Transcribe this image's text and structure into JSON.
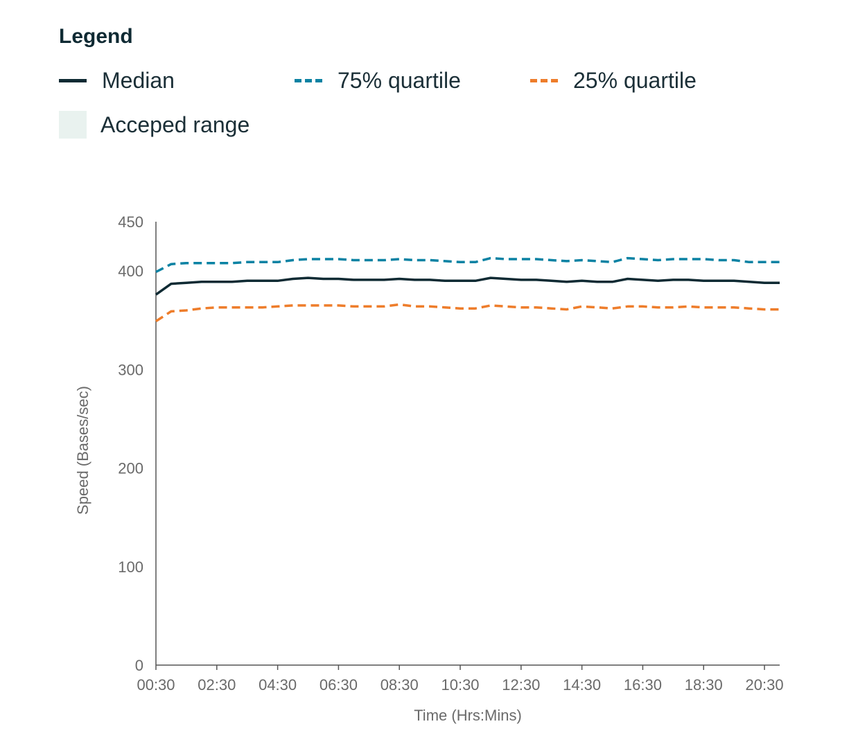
{
  "legend": {
    "title": "Legend",
    "items": [
      {
        "label": "Median",
        "style": "solid",
        "color": "#0f2a33"
      },
      {
        "label": "75% quartile",
        "style": "dashed",
        "color": "#0a82a3"
      },
      {
        "label": "25% quartile",
        "style": "dashed",
        "color": "#ee7d2b"
      },
      {
        "label": "Acceped range",
        "style": "box",
        "color": "#e9f2ef"
      }
    ]
  },
  "chart_data": {
    "type": "line",
    "title": "",
    "xlabel": "Time (Hrs:Mins)",
    "ylabel": "Speed (Bases/sec)",
    "ylim": [
      0,
      450
    ],
    "yticks": [
      0,
      100,
      200,
      300,
      400,
      450
    ],
    "xticks": [
      "00:30",
      "02:30",
      "04:30",
      "06:30",
      "08:30",
      "10:30",
      "12:30",
      "14:30",
      "16:30",
      "18:30",
      "20:30"
    ],
    "xrange_hours": [
      0.5,
      21
    ],
    "x_hours": [
      0.5,
      1.0,
      1.5,
      2.0,
      2.5,
      3.0,
      3.5,
      4.0,
      4.5,
      5.0,
      5.5,
      6.0,
      6.5,
      7.0,
      7.5,
      8.0,
      8.5,
      9.0,
      9.5,
      10.0,
      10.5,
      11.0,
      11.5,
      12.0,
      12.5,
      13.0,
      13.5,
      14.0,
      14.5,
      15.0,
      15.5,
      16.0,
      16.5,
      17.0,
      17.5,
      18.0,
      18.5,
      19.0,
      19.5,
      20.0,
      20.5,
      21.0
    ],
    "series": [
      {
        "name": "75% quartile",
        "color": "#0a82a3",
        "dash": true,
        "values": [
          399,
          407,
          408,
          408,
          408,
          408,
          409,
          409,
          409,
          411,
          412,
          412,
          412,
          411,
          411,
          411,
          412,
          411,
          411,
          410,
          409,
          409,
          413,
          412,
          412,
          412,
          411,
          410,
          411,
          410,
          409,
          413,
          412,
          411,
          412,
          412,
          412,
          411,
          411,
          409,
          409,
          409
        ]
      },
      {
        "name": "Median",
        "color": "#0f2a33",
        "dash": false,
        "values": [
          376,
          387,
          388,
          389,
          389,
          389,
          390,
          390,
          390,
          392,
          393,
          392,
          392,
          391,
          391,
          391,
          392,
          391,
          391,
          390,
          390,
          390,
          393,
          392,
          391,
          391,
          390,
          389,
          390,
          389,
          389,
          392,
          391,
          390,
          391,
          391,
          390,
          390,
          390,
          389,
          388,
          388
        ]
      },
      {
        "name": "25% quartile",
        "color": "#ee7d2b",
        "dash": true,
        "values": [
          349,
          359,
          360,
          362,
          363,
          363,
          363,
          363,
          364,
          365,
          365,
          365,
          365,
          364,
          364,
          364,
          366,
          364,
          364,
          363,
          362,
          362,
          365,
          364,
          363,
          363,
          362,
          361,
          364,
          363,
          362,
          364,
          364,
          363,
          363,
          364,
          363,
          363,
          363,
          362,
          361,
          361
        ]
      }
    ]
  }
}
